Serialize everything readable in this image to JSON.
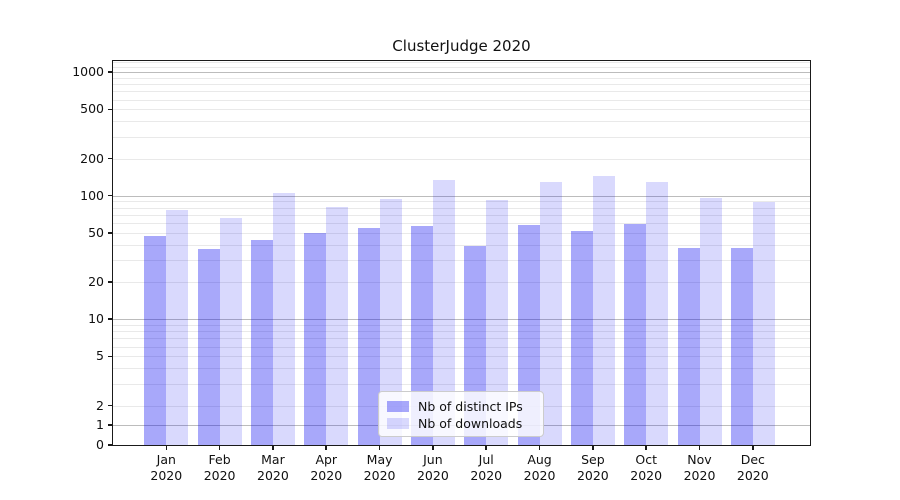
{
  "chart_data": {
    "type": "bar",
    "title": "ClusterJudge 2020",
    "categories": [
      "Jan",
      "Feb",
      "Mar",
      "Apr",
      "May",
      "Jun",
      "Jul",
      "Aug",
      "Sep",
      "Oct",
      "Nov",
      "Dec"
    ],
    "year_label": "2020",
    "series": [
      {
        "name": "Nb of distinct IPs",
        "color": "#0000f0",
        "alpha": 0.34,
        "values": [
          47,
          37,
          44,
          50,
          55,
          57,
          39,
          58,
          52,
          59,
          38,
          38
        ]
      },
      {
        "name": "Nb of downloads",
        "color": "#0000f0",
        "alpha": 0.15,
        "values": [
          77,
          66,
          106,
          81,
          94,
          135,
          93,
          128,
          145,
          128,
          96,
          89
        ]
      }
    ],
    "y_axis": {
      "scale": "symlog",
      "linear_threshold": 2,
      "tick_labels": [
        "0",
        "1",
        "2",
        "5",
        "10",
        "20",
        "50",
        "100",
        "200",
        "500",
        "1000"
      ],
      "ticks": [
        0,
        1,
        2,
        5,
        10,
        20,
        50,
        100,
        200,
        500,
        1000
      ],
      "major_gridline_values": [
        1,
        10,
        100,
        1000
      ],
      "ylim": [
        0,
        1240
      ]
    },
    "xlabel": "",
    "ylabel": "",
    "grid": "both",
    "legend_position": "lower center",
    "style": {
      "grid_major_color": "#bcbcbc",
      "grid_minor_color": "#e9e9e9",
      "spine_color": "#1a1a1a",
      "text_color": "#111111",
      "background_color": "#ffffff"
    }
  }
}
